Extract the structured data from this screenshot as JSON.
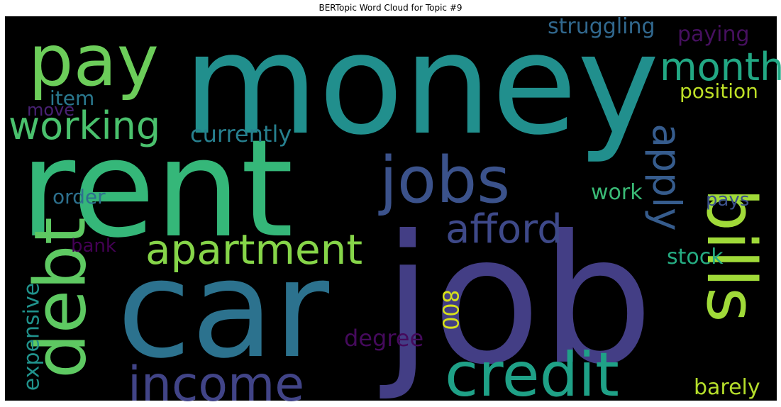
{
  "chart_data": {
    "type": "wordcloud",
    "title": "BERTopic Word Cloud for Topic #9",
    "background": "#000000",
    "words": [
      {
        "text": "money",
        "weight": 1.0,
        "color": "#218f8d",
        "orientation": "horizontal"
      },
      {
        "text": "rent",
        "weight": 0.96,
        "color": "#35b779",
        "orientation": "horizontal"
      },
      {
        "text": "job",
        "weight": 0.97,
        "color": "#433e85",
        "orientation": "horizontal"
      },
      {
        "text": "car",
        "weight": 0.91,
        "color": "#2c728e",
        "orientation": "horizontal"
      },
      {
        "text": "pay",
        "weight": 0.5,
        "color": "#6ccd5a",
        "orientation": "horizontal"
      },
      {
        "text": "debt",
        "weight": 0.55,
        "color": "#5ec962",
        "orientation": "vertical"
      },
      {
        "text": "bills",
        "weight": 0.55,
        "color": "#a0da39",
        "orientation": "vertical"
      },
      {
        "text": "jobs",
        "weight": 0.38,
        "color": "#3b528b",
        "orientation": "horizontal"
      },
      {
        "text": "credit",
        "weight": 0.38,
        "color": "#1fa187",
        "orientation": "horizontal"
      },
      {
        "text": "income",
        "weight": 0.3,
        "color": "#414487",
        "orientation": "horizontal"
      },
      {
        "text": "apply",
        "weight": 0.27,
        "color": "#365c8d",
        "orientation": "vertical"
      },
      {
        "text": "apartment",
        "weight": 0.26,
        "color": "#86d549",
        "orientation": "horizontal"
      },
      {
        "text": "afford",
        "weight": 0.24,
        "color": "#3e4989",
        "orientation": "horizontal"
      },
      {
        "text": "month",
        "weight": 0.23,
        "color": "#22a884",
        "orientation": "horizontal"
      },
      {
        "text": "working",
        "weight": 0.23,
        "color": "#4ac16d",
        "orientation": "horizontal"
      },
      {
        "text": "currently",
        "weight": 0.14,
        "color": "#277f8e",
        "orientation": "horizontal"
      },
      {
        "text": "struggling",
        "weight": 0.13,
        "color": "#31688e",
        "orientation": "horizontal"
      },
      {
        "text": "paying",
        "weight": 0.13,
        "color": "#46105f",
        "orientation": "horizontal"
      },
      {
        "text": "position",
        "weight": 0.12,
        "color": "#bddf26",
        "orientation": "horizontal"
      },
      {
        "text": "item",
        "weight": 0.12,
        "color": "#2a788e",
        "orientation": "horizontal"
      },
      {
        "text": "move",
        "weight": 0.1,
        "color": "#482173",
        "orientation": "horizontal"
      },
      {
        "text": "work",
        "weight": 0.13,
        "color": "#3aba76",
        "orientation": "horizontal"
      },
      {
        "text": "order",
        "weight": 0.11,
        "color": "#2d708e",
        "orientation": "horizontal"
      },
      {
        "text": "pays",
        "weight": 0.11,
        "color": "#3b518b",
        "orientation": "horizontal"
      },
      {
        "text": "bank",
        "weight": 0.11,
        "color": "#440154",
        "orientation": "horizontal"
      },
      {
        "text": "stock",
        "weight": 0.13,
        "color": "#25ac82",
        "orientation": "horizontal"
      },
      {
        "text": "expensive",
        "weight": 0.13,
        "color": "#20928c",
        "orientation": "vertical"
      },
      {
        "text": "800",
        "weight": 0.11,
        "color": "#d8e219",
        "orientation": "vertical"
      },
      {
        "text": "degree",
        "weight": 0.13,
        "color": "#450a5c",
        "orientation": "horizontal"
      },
      {
        "text": "barely",
        "weight": 0.12,
        "color": "#b5de2b",
        "orientation": "horizontal"
      }
    ]
  }
}
